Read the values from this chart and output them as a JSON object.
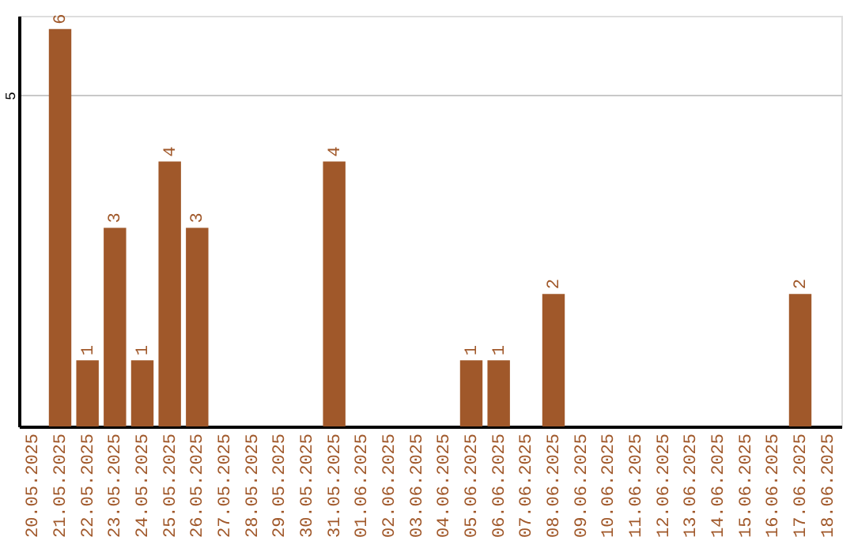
{
  "chart_data": {
    "type": "bar",
    "categories": [
      "20.05.2025",
      "21.05.2025",
      "22.05.2025",
      "23.05.2025",
      "24.05.2025",
      "25.05.2025",
      "26.05.2025",
      "27.05.2025",
      "28.05.2025",
      "29.05.2025",
      "30.05.2025",
      "31.05.2025",
      "01.06.2025",
      "02.06.2025",
      "03.06.2025",
      "04.06.2025",
      "05.06.2025",
      "06.06.2025",
      "07.06.2025",
      "08.06.2025",
      "09.06.2025",
      "10.06.2025",
      "11.06.2025",
      "12.06.2025",
      "13.06.2025",
      "14.06.2025",
      "15.06.2025",
      "16.06.2025",
      "17.06.2025",
      "18.06.2025"
    ],
    "values": [
      0,
      6,
      1,
      3,
      1,
      4,
      3,
      0,
      0,
      0,
      0,
      4,
      0,
      0,
      0,
      0,
      1,
      1,
      0,
      2,
      0,
      0,
      0,
      0,
      0,
      0,
      0,
      0,
      2,
      0
    ],
    "value_labels": [
      null,
      "6",
      "1",
      "3",
      "1",
      "4",
      "3",
      null,
      null,
      null,
      null,
      "4",
      null,
      null,
      null,
      null,
      "1",
      "1",
      null,
      "2",
      null,
      null,
      null,
      null,
      null,
      null,
      null,
      null,
      "2",
      null
    ],
    "color": "#a0582a",
    "ylim": [
      0,
      6.2
    ],
    "yticks": [
      {
        "value": 0,
        "label": null
      },
      5
    ],
    "grid": "y"
  }
}
